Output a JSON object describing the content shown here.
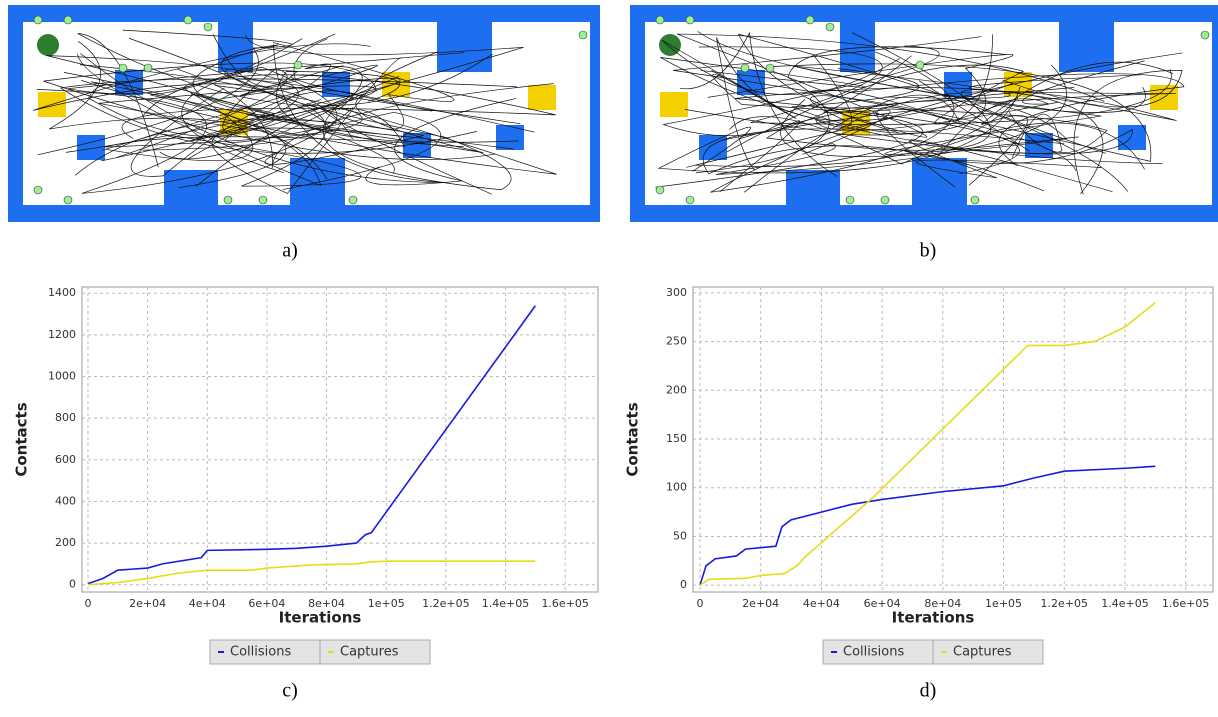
{
  "captions": [
    "a)",
    "b)",
    "c)",
    "d)"
  ],
  "chart_data": [
    {
      "type": "line",
      "xlabel": "Iterations",
      "ylabel": "Contacts",
      "xlim": [
        -2000,
        171000
      ],
      "ylim": [
        -35,
        1430
      ],
      "xticks": [
        0,
        {
          "value": 20000,
          "label": "2e+04"
        },
        {
          "value": 40000,
          "label": "4e+04"
        },
        {
          "value": 60000,
          "label": "6e+04"
        },
        {
          "value": 80000,
          "label": "8e+04"
        },
        {
          "value": 100000,
          "label": "1e+05"
        },
        {
          "value": 120000,
          "label": "1.2e+05"
        },
        {
          "value": 140000,
          "label": "1.4e+05"
        },
        {
          "value": 160000,
          "label": "1.6e+05"
        }
      ],
      "yticks": [
        0,
        200,
        400,
        600,
        800,
        1000,
        1200,
        1400
      ],
      "grid": true,
      "legend": "bottom",
      "series": [
        {
          "name": "Collisions",
          "color": "#1a1adc",
          "x": [
            0,
            5000,
            10000,
            20000,
            25000,
            38000,
            40000,
            60000,
            70000,
            80000,
            90000,
            93000,
            95000,
            150000
          ],
          "values": [
            5,
            30,
            70,
            80,
            100,
            130,
            165,
            170,
            175,
            185,
            200,
            240,
            250,
            1340
          ]
        },
        {
          "name": "Captures",
          "color": "#e6dc14",
          "x": [
            0,
            10000,
            20000,
            30000,
            40000,
            55000,
            60000,
            75000,
            90000,
            95000,
            100000,
            150000
          ],
          "values": [
            0,
            10,
            30,
            55,
            70,
            70,
            80,
            95,
            100,
            110,
            113,
            113
          ]
        }
      ]
    },
    {
      "type": "line",
      "xlabel": "Iterations",
      "ylabel": "Contacts",
      "xlim": [
        -2300,
        169000
      ],
      "ylim": [
        -7,
        306
      ],
      "xticks": [
        0,
        {
          "value": 20000,
          "label": "2e+04"
        },
        {
          "value": 40000,
          "label": "4e+04"
        },
        {
          "value": 60000,
          "label": "6e+04"
        },
        {
          "value": 80000,
          "label": "8e+04"
        },
        {
          "value": 100000,
          "label": "1e+05"
        },
        {
          "value": 120000,
          "label": "1.2e+05"
        },
        {
          "value": 140000,
          "label": "1.4e+05"
        },
        {
          "value": 160000,
          "label": "1.6e+05"
        }
      ],
      "yticks": [
        0,
        50,
        100,
        150,
        200,
        250,
        300
      ],
      "grid": true,
      "legend": "bottom",
      "series": [
        {
          "name": "Collisions",
          "color": "#1a1adc",
          "x": [
            0,
            2000,
            5000,
            12000,
            15000,
            25000,
            27000,
            30000,
            40000,
            50000,
            60000,
            80000,
            100000,
            110000,
            120000,
            140000,
            150000
          ],
          "values": [
            0,
            20,
            27,
            30,
            37,
            40,
            60,
            67,
            75,
            83,
            88,
            96,
            102,
            110,
            117,
            120,
            122
          ]
        },
        {
          "name": "Captures",
          "color": "#e6dc14",
          "x": [
            0,
            3000,
            15000,
            20000,
            28000,
            32000,
            35000,
            57000,
            108000,
            120000,
            130000,
            140000,
            150000
          ],
          "values": [
            0,
            6,
            7,
            10,
            12,
            20,
            30,
            90,
            246,
            246,
            250,
            265,
            290
          ]
        }
      ]
    }
  ]
}
